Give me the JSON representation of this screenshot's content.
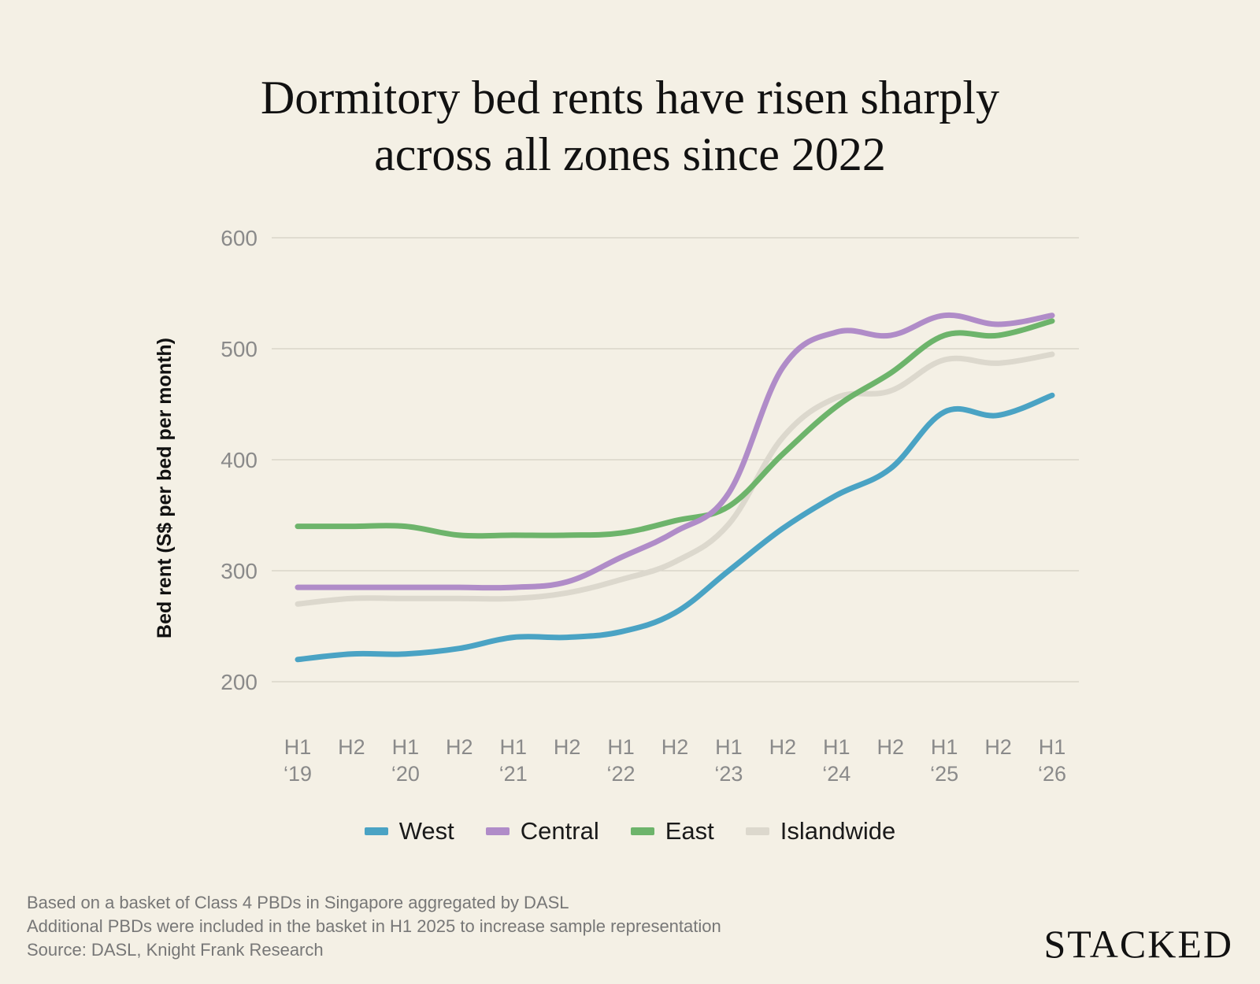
{
  "title_lines": [
    "Dormitory bed rents have risen sharply",
    "across all zones since 2022"
  ],
  "notes": [
    "Based on a basket of Class 4 PBDs in Singapore aggregated by DASL",
    "Additional PBDs were included in the basket in H1 2025 to increase sample representation",
    "Source: DASL, Knight Frank Research"
  ],
  "brand": "STACKED",
  "colors": {
    "background": "#f4f0e5",
    "grid": "#d3cfc4",
    "tick": "#8a8a8a"
  },
  "chart_data": {
    "type": "line",
    "title": "Dormitory bed rents have risen sharply across all zones since 2022",
    "ylabel": "Bed rent (S$ per bed per month)",
    "xlabel": "",
    "ylim": [
      200,
      600
    ],
    "yticks": [
      200,
      300,
      400,
      500,
      600
    ],
    "grid": true,
    "legend": "bottom",
    "categories": [
      [
        "H1",
        "‘19"
      ],
      [
        "H2",
        ""
      ],
      [
        "H1",
        "‘20"
      ],
      [
        "H2",
        ""
      ],
      [
        "H1",
        "‘21"
      ],
      [
        "H2",
        ""
      ],
      [
        "H1",
        "‘22"
      ],
      [
        "H2",
        ""
      ],
      [
        "H1",
        "‘23"
      ],
      [
        "H2",
        ""
      ],
      [
        "H1",
        "‘24"
      ],
      [
        "H2",
        ""
      ],
      [
        "H1",
        "‘25"
      ],
      [
        "H2",
        ""
      ],
      [
        "H1",
        "‘26"
      ]
    ],
    "series": [
      {
        "name": "West",
        "color": "#4aa3c4",
        "values": [
          220,
          225,
          225,
          230,
          240,
          240,
          245,
          262,
          300,
          338,
          368,
          392,
          443,
          440,
          458
        ]
      },
      {
        "name": "Central",
        "color": "#b08cc8",
        "values": [
          285,
          285,
          285,
          285,
          285,
          290,
          312,
          335,
          370,
          483,
          515,
          512,
          530,
          522,
          530
        ]
      },
      {
        "name": "East",
        "color": "#6db46b",
        "values": [
          340,
          340,
          340,
          332,
          332,
          332,
          334,
          345,
          358,
          405,
          448,
          478,
          512,
          512,
          525
        ]
      },
      {
        "name": "Islandwide",
        "color": "#dcd8cd",
        "values": [
          270,
          275,
          275,
          275,
          275,
          280,
          292,
          308,
          342,
          420,
          456,
          462,
          490,
          487,
          495
        ]
      }
    ]
  }
}
